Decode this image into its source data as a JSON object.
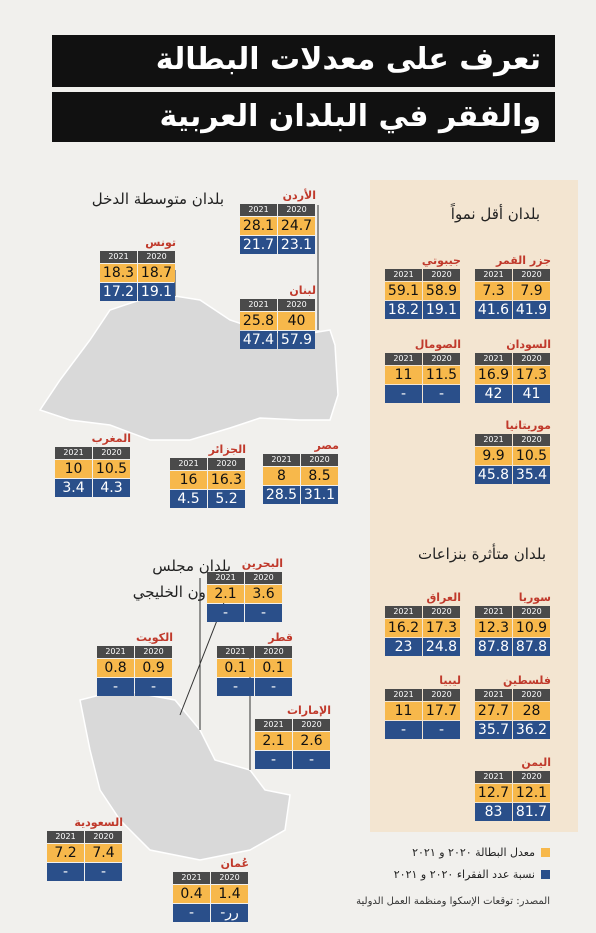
{
  "header": {
    "title_line1": "تعرف على معدلات البطالة",
    "title_line2": "والفقر في البلدان العربية"
  },
  "years": [
    "2021",
    "2020"
  ],
  "groups": [
    {
      "title": "بلدان متوسطة الدخل",
      "countries": [
        {
          "name": "تونس",
          "unemployment": [
            18.3,
            18.7
          ],
          "poverty": [
            17.2,
            19.1
          ]
        },
        {
          "name": "الأردن",
          "unemployment": [
            28.1,
            24.7
          ],
          "poverty": [
            21.7,
            23.1
          ]
        },
        {
          "name": "لبنان",
          "unemployment": [
            25.8,
            40
          ],
          "poverty": [
            47.4,
            57.9
          ]
        },
        {
          "name": "المغرب",
          "unemployment": [
            10,
            10.5
          ],
          "poverty": [
            3.4,
            4.3
          ]
        },
        {
          "name": "الجزائر",
          "unemployment": [
            16,
            16.3
          ],
          "poverty": [
            4.5,
            5.2
          ]
        },
        {
          "name": "مصر",
          "unemployment": [
            8,
            8.5
          ],
          "poverty": [
            28.5,
            31.1
          ]
        }
      ]
    },
    {
      "title": "بلدان أقل نمواً",
      "countries": [
        {
          "name": "جزر القمر",
          "unemployment": [
            7.3,
            7.9
          ],
          "poverty": [
            41.6,
            41.9
          ]
        },
        {
          "name": "جيبوتي",
          "unemployment": [
            59.1,
            58.9
          ],
          "poverty": [
            18.2,
            19.1
          ]
        },
        {
          "name": "السودان",
          "unemployment": [
            16.9,
            17.3
          ],
          "poverty": [
            42,
            41
          ]
        },
        {
          "name": "الصومال",
          "unemployment": [
            11,
            11.5
          ],
          "poverty": [
            "-",
            "-"
          ]
        },
        {
          "name": "موريتانيا",
          "unemployment": [
            9.9,
            10.5
          ],
          "poverty": [
            45.8,
            35.4
          ]
        }
      ]
    },
    {
      "title": "بلدان متأثرة بنزاعات",
      "countries": [
        {
          "name": "سوريا",
          "unemployment": [
            12.3,
            10.9
          ],
          "poverty": [
            87.8,
            87.8
          ]
        },
        {
          "name": "العراق",
          "unemployment": [
            16.2,
            17.3
          ],
          "poverty": [
            23,
            24.8
          ]
        },
        {
          "name": "فلسطين",
          "unemployment": [
            27.7,
            28
          ],
          "poverty": [
            35.7,
            36.2
          ]
        },
        {
          "name": "ليبيا",
          "unemployment": [
            11,
            17.7
          ],
          "poverty": [
            "-",
            "-"
          ]
        },
        {
          "name": "اليمن",
          "unemployment": [
            12.7,
            12.1
          ],
          "poverty": [
            83,
            81.7
          ]
        }
      ]
    },
    {
      "title": "بلدان مجلس التعاون الخليجي",
      "countries": [
        {
          "name": "البحرين",
          "unemployment": [
            2.1,
            3.6
          ],
          "poverty": [
            "-",
            "-"
          ]
        },
        {
          "name": "الكويت",
          "unemployment": [
            0.8,
            0.9
          ],
          "poverty": [
            "-",
            "-"
          ]
        },
        {
          "name": "قطر",
          "unemployment": [
            0.1,
            0.1
          ],
          "poverty": [
            "-",
            "-"
          ]
        },
        {
          "name": "الإمارات",
          "unemployment": [
            2.1,
            2.6
          ],
          "poverty": [
            "-",
            "-"
          ]
        },
        {
          "name": "السعودية",
          "unemployment": [
            7.2,
            7.4
          ],
          "poverty": [
            "-",
            "-"
          ]
        },
        {
          "name": "عُمان",
          "unemployment": [
            0.4,
            1.4
          ],
          "poverty": [
            "-",
            "-رر"
          ]
        }
      ]
    }
  ],
  "legend": {
    "unemployment": "معدل البطالة ٢٠٢٠ و ٢٠٢١",
    "poverty": "نسبة عدد الفقراء ٢٠٢٠ و ٢٠٢١"
  },
  "source": "المصدر: توقعات الإسكوا ومنظمة العمل الدولية"
}
